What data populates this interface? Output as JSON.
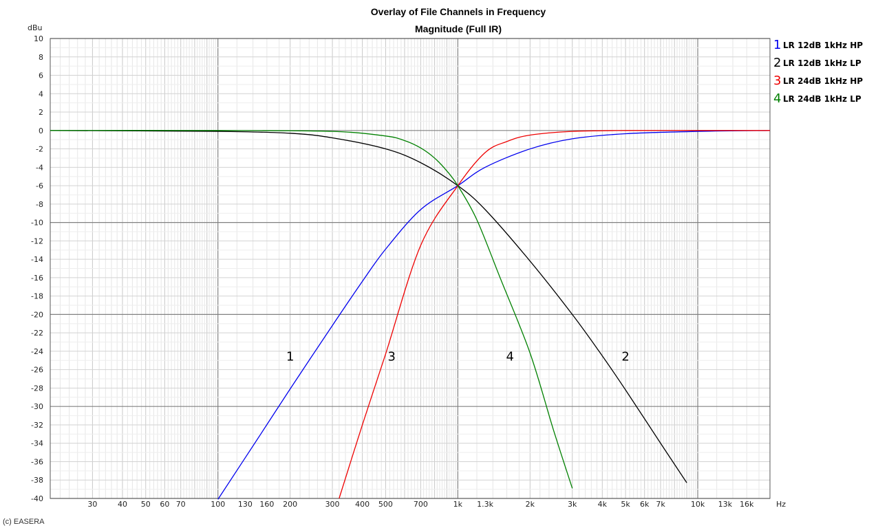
{
  "chart_data": {
    "type": "line",
    "title": [
      "Overlay of File Channels in Frequency",
      "Magnitude (Full IR)"
    ],
    "ylabel": "dBu",
    "xlabel": "Hz",
    "xscale": "log",
    "xlim": [
      20,
      20000
    ],
    "ylim": [
      -40,
      10
    ],
    "grid": true,
    "legend_position": "right",
    "y_ticks": [
      10,
      8,
      6,
      4,
      2,
      0,
      -2,
      -4,
      -6,
      -8,
      -10,
      -12,
      -14,
      -16,
      -18,
      -20,
      -22,
      -24,
      -26,
      -28,
      -30,
      -32,
      -34,
      -36,
      -38,
      -40
    ],
    "x_ticks": [
      {
        "value": 30,
        "label": "30",
        "major": false
      },
      {
        "value": 40,
        "label": "40",
        "major": false
      },
      {
        "value": 50,
        "label": "50",
        "major": false
      },
      {
        "value": 60,
        "label": "60",
        "major": false
      },
      {
        "value": 70,
        "label": "70",
        "major": false
      },
      {
        "value": 100,
        "label": "100",
        "major": true
      },
      {
        "value": 130,
        "label": "130",
        "major": false
      },
      {
        "value": 160,
        "label": "160",
        "major": false
      },
      {
        "value": 200,
        "label": "200",
        "major": true
      },
      {
        "value": 300,
        "label": "300",
        "major": false
      },
      {
        "value": 400,
        "label": "400",
        "major": false
      },
      {
        "value": 500,
        "label": "500",
        "major": false
      },
      {
        "value": 700,
        "label": "700",
        "major": false
      },
      {
        "value": 1000,
        "label": "1k",
        "major": true
      },
      {
        "value": 1300,
        "label": "1.3k",
        "major": false
      },
      {
        "value": 2000,
        "label": "2k",
        "major": true
      },
      {
        "value": 3000,
        "label": "3k",
        "major": false
      },
      {
        "value": 4000,
        "label": "4k",
        "major": false
      },
      {
        "value": 5000,
        "label": "5k",
        "major": false
      },
      {
        "value": 6000,
        "label": "6k",
        "major": false
      },
      {
        "value": 7000,
        "label": "7k",
        "major": false
      },
      {
        "value": 10000,
        "label": "10k",
        "major": true
      },
      {
        "value": 13000,
        "label": "13k",
        "major": false
      },
      {
        "value": 16000,
        "label": "16k",
        "major": false
      }
    ],
    "series": [
      {
        "id": "1",
        "name": "LR 12dB 1kHz HP",
        "color": "#0000ee",
        "curve_label": "1",
        "x": [
          100,
          150,
          200,
          300,
          400,
          500,
          700,
          1000,
          1300,
          2000,
          3000,
          5000,
          10000,
          20000
        ],
        "y": [
          -40.1,
          -33.1,
          -28.1,
          -21.2,
          -16.4,
          -12.9,
          -8.6,
          -6.0,
          -4.0,
          -2.0,
          -0.9,
          -0.35,
          -0.1,
          0.0
        ]
      },
      {
        "id": "2",
        "name": "LR 12dB 1kHz LP",
        "color": "#000000",
        "curve_label": "2",
        "x": [
          20,
          100,
          200,
          300,
          500,
          700,
          1000,
          1300,
          2000,
          3000,
          4000,
          5000,
          7000,
          9000
        ],
        "y": [
          0.0,
          -0.1,
          -0.3,
          -0.8,
          -2.0,
          -3.5,
          -6.0,
          -8.6,
          -14.2,
          -20.0,
          -24.5,
          -28.2,
          -34.0,
          -38.3
        ]
      },
      {
        "id": "3",
        "name": "LR 24dB 1kHz HP",
        "color": "#ee0000",
        "curve_label": "3",
        "x": [
          320,
          400,
          500,
          700,
          1000,
          1300,
          1600,
          2000,
          3000,
          5000,
          10000,
          20000
        ],
        "y": [
          -40.0,
          -32.0,
          -24.3,
          -12.5,
          -6.0,
          -2.4,
          -1.2,
          -0.5,
          -0.1,
          0.0,
          0.0,
          0.0
        ]
      },
      {
        "id": "4",
        "name": "LR 24dB 1kHz LP",
        "color": "#008000",
        "curve_label": "4",
        "x": [
          20,
          100,
          300,
          500,
          600,
          700,
          800,
          900,
          1000,
          1200,
          1500,
          2000,
          2500,
          3000
        ],
        "y": [
          0.0,
          0.0,
          -0.1,
          -0.6,
          -1.1,
          -1.9,
          -3.0,
          -4.4,
          -6.0,
          -9.7,
          -16.0,
          -24.2,
          -32.5,
          -38.9
        ]
      }
    ],
    "annotations": [
      {
        "text": "1",
        "x": 200,
        "y": -24.5
      },
      {
        "text": "3",
        "x": 530,
        "y": -24.5
      },
      {
        "text": "4",
        "x": 1650,
        "y": -24.5
      },
      {
        "text": "2",
        "x": 5000,
        "y": -24.5
      }
    ]
  },
  "footer": {
    "credit": "(c) EASERA"
  }
}
